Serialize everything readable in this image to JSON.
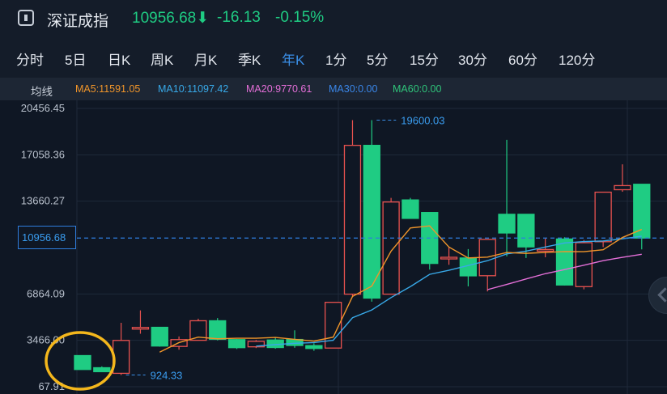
{
  "header": {
    "title": "深证成指",
    "price": "10956.68",
    "arrow": "⬇",
    "change": "-16.13",
    "change_pct": "-0.15%"
  },
  "tabs": [
    {
      "label": "分时",
      "active": false
    },
    {
      "label": "5日",
      "active": false
    },
    {
      "label": "日K",
      "active": false
    },
    {
      "label": "周K",
      "active": false
    },
    {
      "label": "月K",
      "active": false
    },
    {
      "label": "季K",
      "active": false
    },
    {
      "label": "年K",
      "active": true
    },
    {
      "label": "1分",
      "active": false
    },
    {
      "label": "5分",
      "active": false
    },
    {
      "label": "15分",
      "active": false
    },
    {
      "label": "30分",
      "active": false
    },
    {
      "label": "60分",
      "active": false
    },
    {
      "label": "120分",
      "active": false
    }
  ],
  "ma_bar": {
    "label": "均线",
    "items": [
      {
        "text": "MA5:11591.05",
        "color": "#f0952a"
      },
      {
        "text": "MA10:11097.42",
        "color": "#38a9e8"
      },
      {
        "text": "MA20:9770.61",
        "color": "#e46fd8"
      },
      {
        "text": "MA30:0.00",
        "color": "#3a86e8"
      },
      {
        "text": "MA60:0.00",
        "color": "#2fc47a"
      }
    ]
  },
  "current_price_label": "10956.68",
  "icons": {
    "scroll": "chevron-left-icon",
    "header": "chart-icon"
  },
  "chart_data": {
    "type": "candlestick",
    "y_ticks": [
      "20456.45",
      "17058.36",
      "13660.27",
      "6864.09",
      "3466.00",
      "67.91"
    ],
    "ylim": [
      67.91,
      20456.45
    ],
    "current_price": 10956.68,
    "annotations": [
      {
        "text": "19600.03",
        "value": 19600.03,
        "bar_index": 15
      },
      {
        "text": "924.33",
        "value": 924.33,
        "bar_index": 2
      }
    ],
    "up_color": "#e8524f",
    "down_color": "#1fcc83",
    "candles": [
      {
        "o": 2350,
        "h": 2350,
        "l": 1330,
        "c": 1330
      },
      {
        "o": 1460,
        "h": 1560,
        "l": 1160,
        "c": 1170
      },
      {
        "o": 1050,
        "h": 4750,
        "l": 924.33,
        "c": 3460
      },
      {
        "o": 4360,
        "h": 5660,
        "l": 3950,
        "c": 4410
      },
      {
        "o": 4420,
        "h": 4420,
        "l": 3000,
        "c": 3050
      },
      {
        "o": 3020,
        "h": 3750,
        "l": 2780,
        "c": 3520
      },
      {
        "o": 3470,
        "h": 5050,
        "l": 3470,
        "c": 4900
      },
      {
        "o": 4900,
        "h": 5100,
        "l": 3460,
        "c": 3540
      },
      {
        "o": 3520,
        "h": 3560,
        "l": 2830,
        "c": 2930
      },
      {
        "o": 2990,
        "h": 3490,
        "l": 2900,
        "c": 3390
      },
      {
        "o": 3490,
        "h": 3660,
        "l": 2850,
        "c": 2940
      },
      {
        "o": 3530,
        "h": 4200,
        "l": 2920,
        "c": 3090
      },
      {
        "o": 3080,
        "h": 3250,
        "l": 2700,
        "c": 2870
      },
      {
        "o": 2900,
        "h": 6250,
        "l": 2900,
        "c": 6250
      },
      {
        "o": 6850,
        "h": 19600.03,
        "l": 6700,
        "c": 17750
      },
      {
        "o": 17750,
        "h": 19600.03,
        "l": 6300,
        "c": 6560
      },
      {
        "o": 6850,
        "h": 13900,
        "l": 6850,
        "c": 13600
      },
      {
        "o": 13750,
        "h": 13900,
        "l": 12400,
        "c": 12400
      },
      {
        "o": 12830,
        "h": 12830,
        "l": 8650,
        "c": 9100
      },
      {
        "o": 9500,
        "h": 10300,
        "l": 9000,
        "c": 9550
      },
      {
        "o": 9500,
        "h": 10150,
        "l": 7420,
        "c": 8190
      },
      {
        "o": 8200,
        "h": 10860,
        "l": 7050,
        "c": 10860
      },
      {
        "o": 12700,
        "h": 18150,
        "l": 9620,
        "c": 11330
      },
      {
        "o": 12700,
        "h": 12700,
        "l": 9500,
        "c": 10310
      },
      {
        "o": 10100,
        "h": 10950,
        "l": 9550,
        "c": 10120
      },
      {
        "o": 10890,
        "h": 11020,
        "l": 7480,
        "c": 7520
      },
      {
        "o": 7400,
        "h": 10810,
        "l": 7200,
        "c": 10620
      },
      {
        "o": 10690,
        "h": 14320,
        "l": 10300,
        "c": 14320
      },
      {
        "o": 14500,
        "h": 16360,
        "l": 14350,
        "c": 14800
      },
      {
        "o": 14900,
        "h": 14900,
        "l": 10130,
        "c": 10956.68
      }
    ],
    "ma5": [
      null,
      null,
      null,
      null,
      2600,
      3300,
      3700,
      3580,
      3620,
      3620,
      3680,
      3540,
      3410,
      3700,
      6680,
      7440,
      10000,
      11700,
      11850,
      10300,
      9500,
      9560,
      9900,
      9840,
      9900,
      9970,
      9960,
      10100,
      11000,
      11591.05
    ],
    "ma10": [
      null,
      null,
      null,
      null,
      null,
      null,
      null,
      null,
      null,
      3040,
      3150,
      3250,
      3300,
      3470,
      5120,
      5690,
      6600,
      7400,
      8300,
      8600,
      8950,
      9300,
      9800,
      10000,
      10300,
      10600,
      10700,
      10750,
      10900,
      11097.42
    ],
    "ma20": [
      null,
      null,
      null,
      null,
      null,
      null,
      null,
      null,
      null,
      null,
      null,
      null,
      null,
      null,
      null,
      null,
      null,
      null,
      null,
      null,
      null,
      7180,
      7560,
      7960,
      8350,
      8650,
      8970,
      9300,
      9550,
      9770.61
    ]
  }
}
